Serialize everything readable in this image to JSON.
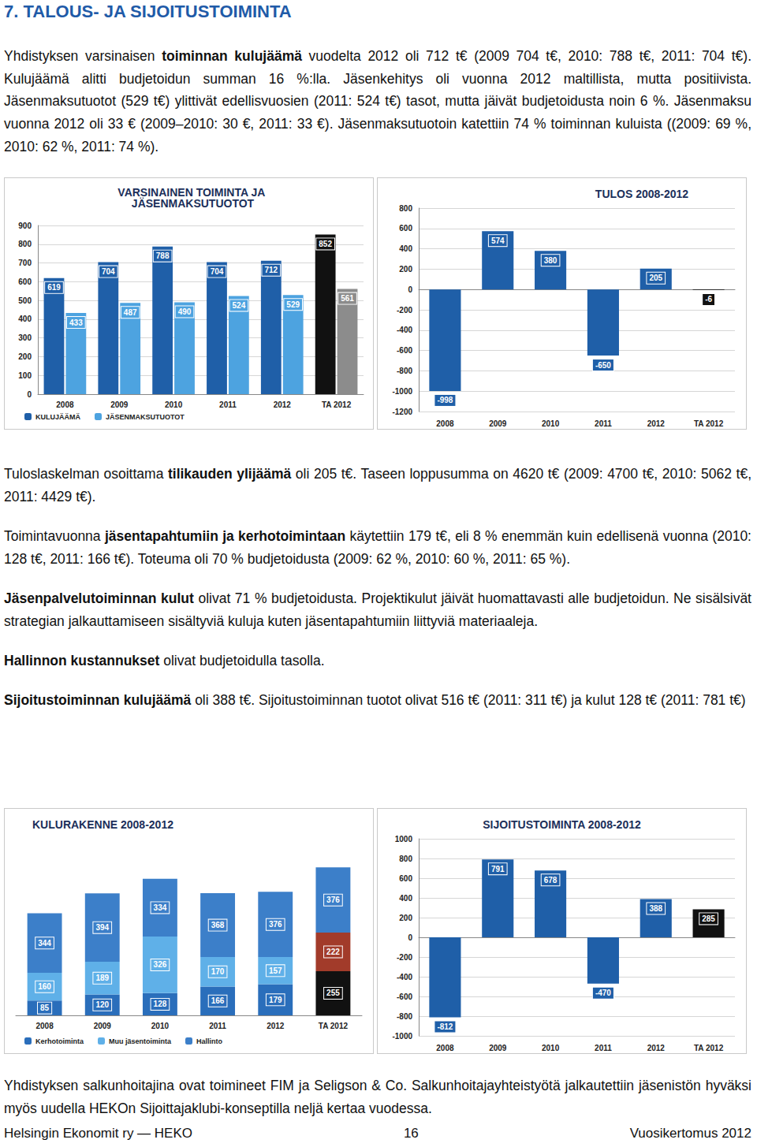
{
  "document": {
    "heading": "7. TALOUS- JA SIJOITUSTOIMINTA",
    "intro": [
      [
        {
          "text": "Yhdistyksen varsinaisen "
        },
        {
          "text": "toiminnan kulujäämä",
          "bold": true
        },
        {
          "text": " vuodelta 2012 oli 712 t€ (2009 704 t€, 2010: 788 t€, 2011: 704 t€). Kulujäämä alitti budjetoidun summan 16 %:lla. Jäsenkehitys oli vuonna 2012 maltillista, mutta positiivista. Jäsenmaksutuotot (529 t€) ylittivät edellisvuosien (2011: 524 t€) tasot, mutta jäivät budjetoidusta noin 6 %. Jäsenmaksu vuonna 2012 oli 33 € (2009–2010: 30 €, 2011: 33 €). Jäsenmaksutuotoin katettiin 74 % toiminnan kuluista ((2009: 69 %, 2010: 62 %, 2011: 74 %)."
        }
      ]
    ],
    "middle": [
      [
        {
          "text": "Tuloslaskelman osoittama "
        },
        {
          "text": "tilikauden ylijäämä",
          "bold": true
        },
        {
          "text": " oli 205 t€. Taseen loppusumma on 4620 t€ (2009: 4700 t€, 2010: 5062 t€, 2011: 4429 t€)."
        }
      ],
      [
        {
          "text": "Toimintavuonna "
        },
        {
          "text": "jäsentapahtumiin ja kerhotoimintaan",
          "bold": true
        },
        {
          "text": " käytettiin 179 t€, eli 8 % enemmän kuin edellisenä vuonna (2010: 128 t€, 2011: 166 t€). Toteuma oli 70 % budjetoidusta (2009: 62 %, 2010: 60 %, 2011: 65 %)."
        }
      ],
      [
        {
          "text": "Jäsenpalvelutoiminnan kulut",
          "bold": true
        },
        {
          "text": " olivat 71 % budjetoidusta. Projektikulut jäivät huomattavasti alle budjetoidun. Ne sisälsivät strategian jalkauttamiseen sisältyviä kuluja kuten jäsentapahtumiin liittyviä materiaaleja."
        }
      ],
      [
        {
          "text": "Hallinnon kustannukset",
          "bold": true
        },
        {
          "text": " olivat budjetoidulla tasolla."
        }
      ],
      [
        {
          "text": "Sijoitustoiminnan kulujäämä",
          "bold": true
        },
        {
          "text": " oli 388 t€. Sijoitustoiminnan tuotot olivat 516 t€ (2011: 311 t€) ja kulut 128 t€ (2011: 781 t€)"
        }
      ]
    ],
    "closing": [
      [
        {
          "text": "Yhdistyksen salkunhoitajina ovat toimineet FIM ja Seligson & Co. Salkunhoitajayhteistyötä jalkautettiin jäsenistön hyväksi myös uudella HEKOn Sijoittajaklubi-konseptilla neljä kertaa vuodessa."
        }
      ]
    ],
    "footer": {
      "left": "Helsingin Ekonomit ry — HEKO",
      "center": "16",
      "right": "Vuosikertomus 2012"
    }
  },
  "chart_data": [
    {
      "type": "bar",
      "title": "VARSINAINEN TOIMINTA JA JÄSENMAKSUTUOTOT",
      "categories": [
        "2008",
        "2009",
        "2010",
        "2011",
        "2012",
        "TA 2012"
      ],
      "series": [
        {
          "name": "KULUJÄÄMÄ",
          "color": "#1f5fa8",
          "colors": [
            "#1f5fa8",
            "#1f5fa8",
            "#1f5fa8",
            "#1f5fa8",
            "#1f5fa8",
            "#111111"
          ],
          "values": [
            619,
            704,
            788,
            704,
            712,
            852
          ]
        },
        {
          "name": "JÄSENMAKSUTUOTOT",
          "color": "#4da3e0",
          "colors": [
            "#4da3e0",
            "#4da3e0",
            "#4da3e0",
            "#4da3e0",
            "#4da3e0",
            "#8c8c8c"
          ],
          "values": [
            433,
            487,
            490,
            524,
            529,
            561
          ]
        }
      ],
      "ylim": [
        0,
        900
      ],
      "yticks": [
        0,
        100,
        200,
        300,
        400,
        500,
        600,
        700,
        800,
        900
      ],
      "grid": true,
      "legend": "bottom",
      "data_labels": true
    },
    {
      "type": "bar",
      "title": "TULOS 2008-2012",
      "categories": [
        "2008",
        "2009",
        "2010",
        "2011",
        "2012",
        "TA 2012"
      ],
      "values": [
        -998,
        574,
        380,
        -650,
        205,
        -6
      ],
      "color": "#1f5fa8",
      "colors": [
        "#1f5fa8",
        "#1f5fa8",
        "#1f5fa8",
        "#1f5fa8",
        "#1f5fa8",
        "#111111"
      ],
      "ylim": [
        -1200,
        800
      ],
      "yticks": [
        -1200,
        -1000,
        -800,
        -600,
        -400,
        -200,
        0,
        200,
        400,
        600,
        800
      ],
      "grid": true,
      "data_labels": true
    },
    {
      "type": "bar",
      "title": "KULURAKENNE 2008-2012",
      "categories": [
        "2008",
        "2009",
        "2010",
        "2011",
        "2012",
        "TA 2012"
      ],
      "series": [
        {
          "name": "Kerhotoiminta",
          "color": "#2a6ebb",
          "colors": [
            "#2a6ebb",
            "#2a6ebb",
            "#2a6ebb",
            "#2a6ebb",
            "#2a6ebb",
            "#111111"
          ],
          "values": [
            85,
            120,
            128,
            166,
            179,
            255
          ]
        },
        {
          "name": "Muu jäsentoiminta",
          "color": "#5fb0e8",
          "colors": [
            "#5fb0e8",
            "#5fb0e8",
            "#5fb0e8",
            "#5fb0e8",
            "#5fb0e8",
            "#a23b2a"
          ],
          "values": [
            160,
            189,
            326,
            170,
            157,
            222
          ]
        },
        {
          "name": "Hallinto",
          "color": "#3c7fc9",
          "colors": [
            "#3c7fc9",
            "#3c7fc9",
            "#3c7fc9",
            "#3c7fc9",
            "#3c7fc9",
            "#3c7fc9"
          ],
          "values": [
            344,
            394,
            334,
            368,
            376,
            376
          ]
        }
      ],
      "stacked": true,
      "grid": false,
      "legend": "bottom",
      "tick_labels": "x",
      "data_labels": true
    },
    {
      "type": "bar",
      "title": "SIJOITUSTOIMINTA 2008-2012",
      "categories": [
        "2008",
        "2009",
        "2010",
        "2011",
        "2012",
        "TA 2012"
      ],
      "values": [
        -812,
        791,
        678,
        -470,
        388,
        285
      ],
      "color": "#1f5fa8",
      "colors": [
        "#1f5fa8",
        "#1f5fa8",
        "#1f5fa8",
        "#1f5fa8",
        "#1f5fa8",
        "#111111"
      ],
      "ylim": [
        -1000,
        1000
      ],
      "yticks": [
        -1000,
        -800,
        -600,
        -400,
        -200,
        0,
        200,
        400,
        600,
        800,
        1000
      ],
      "grid": true,
      "data_labels": true
    }
  ]
}
